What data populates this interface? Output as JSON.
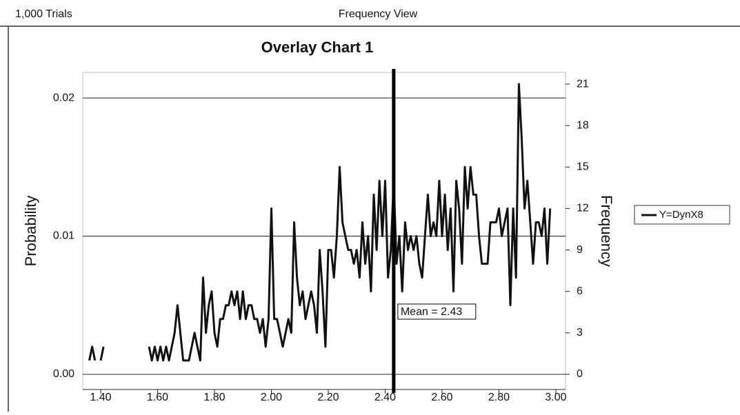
{
  "header": {
    "left": "1,000 Trials",
    "center": "Frequency View"
  },
  "chart_data": {
    "type": "line",
    "title": "Overlay Chart 1",
    "ylabel": "Probability",
    "y2label": "Frequency",
    "ylim": [
      -0.0011,
      0.02185
    ],
    "yticks": [
      {
        "value": 0,
        "label": "0.00"
      },
      {
        "value": 0.01,
        "label": "0.01"
      },
      {
        "value": 0.02,
        "label": "0.02"
      }
    ],
    "y2lim": [
      -1.1,
      21.85
    ],
    "y2ticks": [
      0,
      3,
      6,
      9,
      12,
      15,
      18,
      21
    ],
    "xlim": [
      1.337,
      3.034
    ],
    "xticks": [
      {
        "value": 1.4,
        "label": "1.40"
      },
      {
        "value": 1.6,
        "label": "1.60"
      },
      {
        "value": 1.8,
        "label": "1.80"
      },
      {
        "value": 2.0,
        "label": "2.00"
      },
      {
        "value": 2.2,
        "label": "2.20"
      },
      {
        "value": 2.4,
        "label": "2.40"
      },
      {
        "value": 2.6,
        "label": "2.60"
      },
      {
        "value": 2.8,
        "label": "2.80"
      },
      {
        "value": 3.0,
        "label": "3.00"
      }
    ],
    "grid": true,
    "legend": "right",
    "mean_line": {
      "value": 2.43,
      "label": "Mean = 2.43"
    },
    "x": [
      1.36,
      1.37,
      1.38,
      1.39,
      1.4,
      1.41,
      1.42,
      1.43,
      1.44,
      1.45,
      1.46,
      1.47,
      1.48,
      1.49,
      1.5,
      1.51,
      1.52,
      1.53,
      1.54,
      1.55,
      1.56,
      1.57,
      1.58,
      1.59,
      1.6,
      1.61,
      1.62,
      1.63,
      1.64,
      1.65,
      1.66,
      1.67,
      1.68,
      1.69,
      1.7,
      1.71,
      1.72,
      1.73,
      1.74,
      1.75,
      1.76,
      1.77,
      1.78,
      1.79,
      1.8,
      1.81,
      1.82,
      1.83,
      1.84,
      1.85,
      1.86,
      1.87,
      1.88,
      1.89,
      1.9,
      1.91,
      1.92,
      1.93,
      1.94,
      1.95,
      1.96,
      1.97,
      1.98,
      1.99,
      2.0,
      2.01,
      2.02,
      2.03,
      2.04,
      2.05,
      2.06,
      2.07,
      2.08,
      2.09,
      2.1,
      2.11,
      2.12,
      2.13,
      2.14,
      2.15,
      2.16,
      2.17,
      2.18,
      2.19,
      2.2,
      2.21,
      2.22,
      2.23,
      2.24,
      2.25,
      2.26,
      2.27,
      2.28,
      2.29,
      2.3,
      2.31,
      2.32,
      2.33,
      2.34,
      2.35,
      2.36,
      2.37,
      2.38,
      2.39,
      2.4,
      2.41,
      2.42,
      2.43,
      2.44,
      2.45,
      2.46,
      2.47,
      2.48,
      2.49,
      2.5,
      2.51,
      2.52,
      2.53,
      2.54,
      2.55,
      2.56,
      2.57,
      2.58,
      2.59,
      2.6,
      2.61,
      2.62,
      2.63,
      2.64,
      2.65,
      2.66,
      2.67,
      2.68,
      2.69,
      2.7,
      2.71,
      2.72,
      2.73,
      2.74,
      2.75,
      2.76,
      2.77,
      2.78,
      2.79,
      2.8,
      2.81,
      2.82,
      2.83,
      2.84,
      2.85,
      2.86,
      2.87,
      2.88,
      2.89,
      2.9,
      2.91,
      2.92,
      2.93,
      2.94,
      2.95,
      2.96,
      2.97,
      2.98
    ],
    "series": [
      {
        "name": "Y=DynX8",
        "color": "#111111",
        "axis": "y2",
        "values": [
          1,
          2,
          1,
          null,
          1,
          2,
          null,
          null,
          null,
          null,
          null,
          null,
          null,
          null,
          null,
          null,
          null,
          null,
          null,
          null,
          null,
          2,
          1,
          2,
          1,
          2,
          1,
          2,
          1,
          2,
          3,
          5,
          3,
          1,
          1,
          1,
          2,
          3,
          2,
          1,
          7,
          3,
          5,
          6,
          3,
          2,
          4,
          4,
          5,
          5,
          6,
          5,
          6,
          4,
          6,
          4,
          5,
          5,
          4,
          4,
          3,
          4,
          2,
          4,
          12,
          4,
          4,
          3,
          2,
          3,
          4,
          3,
          11,
          7,
          5,
          6,
          4,
          5,
          6,
          5,
          3,
          9,
          6,
          2,
          9,
          9,
          7,
          10,
          15,
          11,
          10,
          9,
          9,
          8,
          9,
          7,
          11,
          8,
          10,
          6,
          13,
          9,
          14,
          10,
          14,
          7,
          9,
          14,
          8,
          10,
          6,
          11,
          9,
          10,
          9,
          10,
          8,
          7,
          10,
          13,
          10,
          11,
          10,
          14,
          10,
          13,
          9,
          12,
          6,
          14,
          12,
          8,
          15,
          12,
          15,
          13,
          13,
          10,
          8,
          8,
          8,
          11,
          11,
          11,
          12,
          10,
          11,
          12,
          5,
          12,
          7,
          21,
          17,
          12,
          14,
          11,
          8,
          11,
          11,
          10,
          12,
          8,
          12
        ]
      }
    ]
  }
}
